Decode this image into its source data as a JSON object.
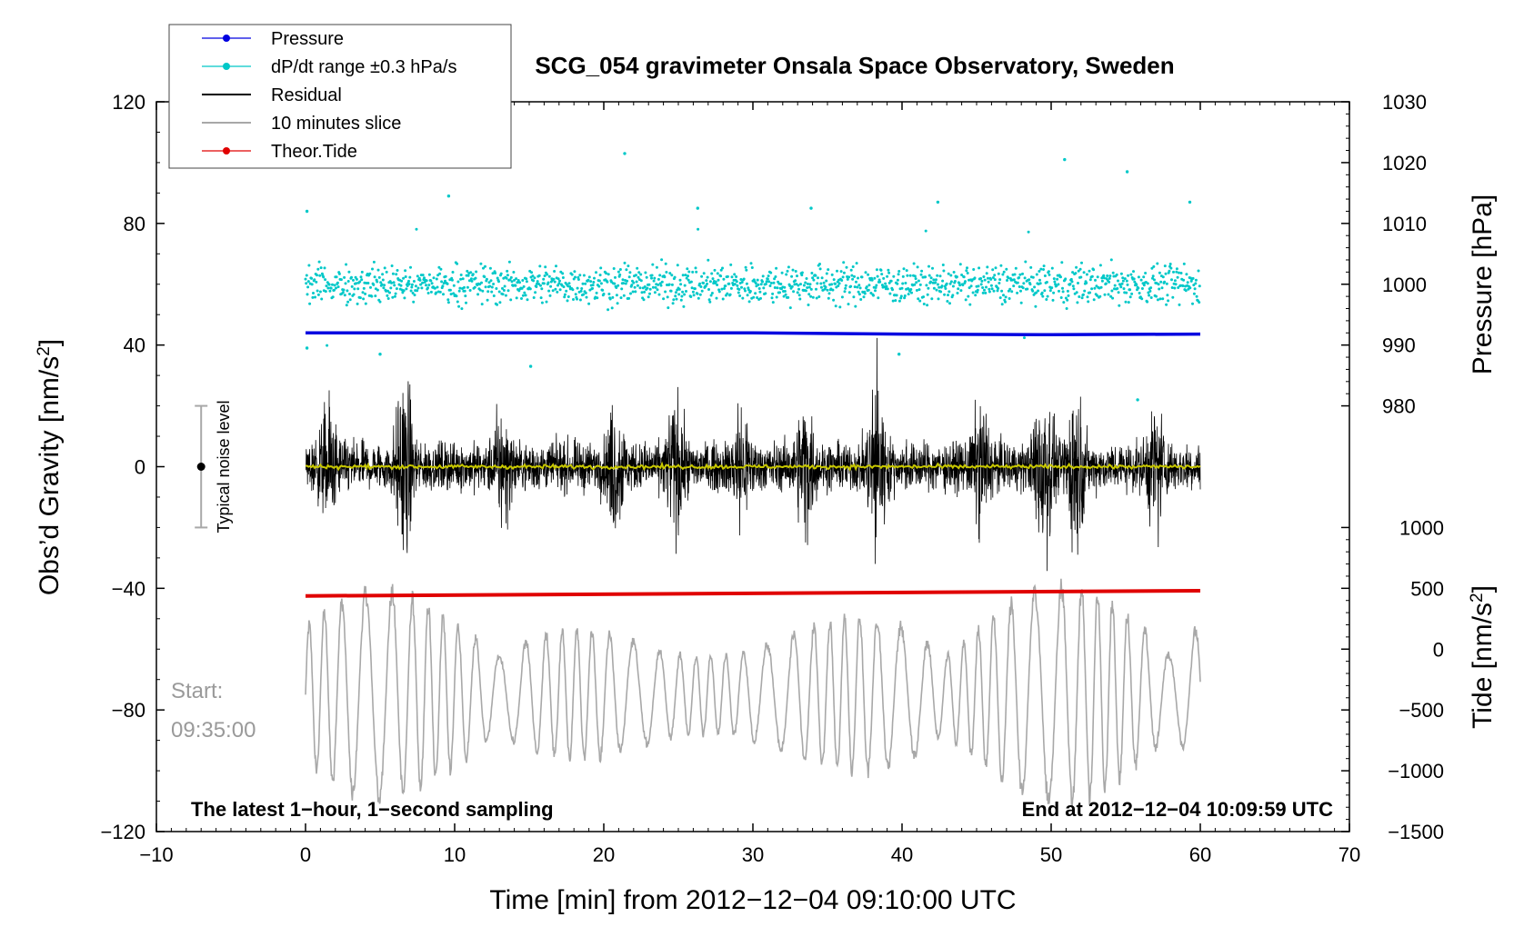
{
  "chart_data": {
    "type": "line",
    "title": "SCG_054 gravimeter Onsala Space Observatory, Sweden",
    "xlabel": "Time [min] from 2012−12−04 09:10:00 UTC",
    "ylabel": "Obs’d Gravity [nm/s²]",
    "ylabel_main": "Obs’d Gravity [nm/s",
    "ylabel_sup": "2",
    "ylabel_close": "]",
    "ylabel_right_top": "Pressure [hPa]",
    "ylabel_right_bottom_main": "Tide [nm/s",
    "ylabel_right_bottom_sup": "2",
    "ylabel_right_bottom_close": "]",
    "xlim": [
      -10,
      70
    ],
    "ylim": [
      -120,
      120
    ],
    "x_ticks": [
      -10,
      0,
      10,
      20,
      30,
      40,
      50,
      60,
      70
    ],
    "x_tick_labels": [
      "−10",
      "0",
      "10",
      "20",
      "30",
      "40",
      "50",
      "60",
      "70"
    ],
    "y_ticks": [
      -120,
      -80,
      -40,
      0,
      40,
      80,
      120
    ],
    "y_tick_labels": [
      "−120",
      "−80",
      "−40",
      "0",
      "40",
      "80",
      "120"
    ],
    "pressure_axis": {
      "ticks": [
        980,
        990,
        1000,
        1010,
        1020,
        1030
      ],
      "tick_labels": [
        "980",
        "990",
        "1000",
        "1010",
        "1020",
        "1030"
      ],
      "left_value_at_980": 20,
      "left_units_per_hPa": 2
    },
    "tide_axis": {
      "ticks": [
        -1500,
        -1000,
        -500,
        0,
        500,
        1000
      ],
      "tick_labels": [
        "−1500",
        "−1000",
        "−500",
        "0",
        "500",
        "1000"
      ],
      "left_value_at_0": -60,
      "left_units_per_nm": 0.04
    },
    "legend": [
      {
        "label": "Pressure",
        "color": "#0000e0",
        "marker": "dot"
      },
      {
        "label": "dP/dt range ±0.3 hPa/s",
        "color": "#00c8c8",
        "marker": "dot"
      },
      {
        "label": "Residual",
        "color": "#000000",
        "marker": "line"
      },
      {
        "label": "10 minutes slice",
        "color": "#a8a8a8",
        "marker": "line"
      },
      {
        "label": "Theor.Tide",
        "color": "#e00000",
        "marker": "dot"
      }
    ],
    "series": [
      {
        "name": "Pressure",
        "color": "#0000e0",
        "x": [
          0,
          10,
          20,
          30,
          40,
          50,
          60
        ],
        "values": [
          992,
          992,
          992,
          992,
          991.8,
          991.7,
          991.8
        ]
      },
      {
        "name": "dP/dt range ±0.3 hPa/s",
        "color": "#00c8c8",
        "center": 60,
        "spread": 6,
        "x_range": [
          0,
          60
        ],
        "outliers": [
          [
            0.1,
            84
          ],
          [
            0.1,
            39
          ],
          [
            9.6,
            89
          ],
          [
            21.4,
            103
          ],
          [
            26.3,
            85
          ],
          [
            33.9,
            85
          ],
          [
            42.4,
            87
          ],
          [
            50.9,
            101
          ],
          [
            55.1,
            97
          ],
          [
            59.3,
            87
          ],
          [
            5.0,
            37
          ],
          [
            15.1,
            33
          ],
          [
            39.8,
            37
          ],
          [
            55.8,
            22
          ]
        ]
      },
      {
        "name": "Residual",
        "color": "#000000",
        "x_range": [
          0,
          60
        ],
        "typical_amplitude": 20,
        "max_amplitude": 44
      },
      {
        "name": "Residual mean",
        "color": "#c8c800",
        "x_range": [
          0,
          60
        ],
        "value": 0
      },
      {
        "name": "Theor.Tide",
        "color": "#e00000",
        "x": [
          0,
          60
        ],
        "values": [
          -42.5,
          -40.8
        ]
      },
      {
        "name": "10 minutes slice",
        "color": "#a8a8a8",
        "x_range": [
          0,
          60
        ],
        "center": -75,
        "max_amplitude": 40
      }
    ],
    "annotations": {
      "noise_label": "Typical noise level",
      "noise_x": -7,
      "noise_range": [
        -20,
        20
      ],
      "start_label": "Start:",
      "start_time": "09:35:00",
      "footer_left": "The latest 1−hour, 1−second sampling",
      "footer_right": "End at 2012−12−04 10:09:59 UTC"
    }
  }
}
